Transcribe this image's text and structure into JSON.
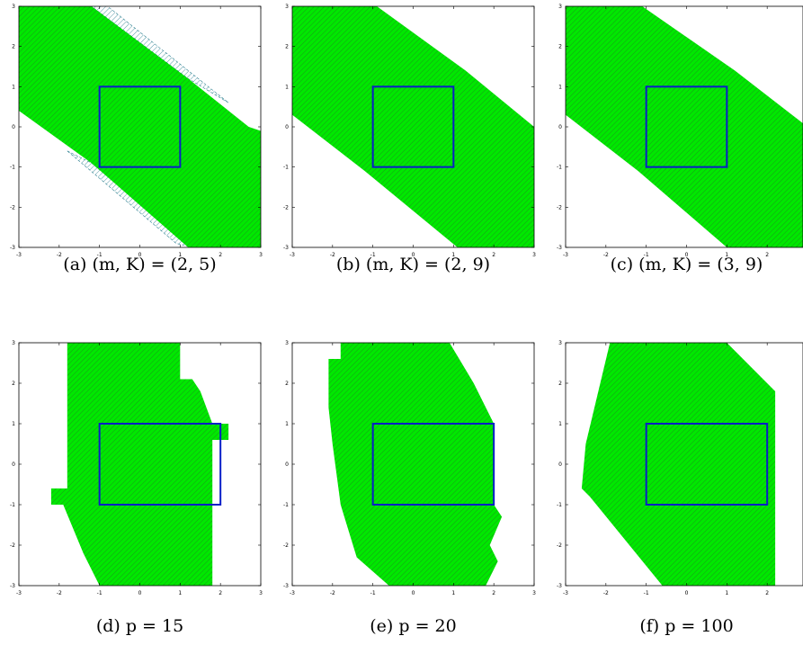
{
  "colors": {
    "region": "#00e800",
    "hatch": "#1a9a1a",
    "outline": "#0a1ec8",
    "extra_hatch": "#2a7f8f",
    "axes": "#000000"
  },
  "chart_data": [
    {
      "type": "area",
      "caption": "(a) (m, K) = (2, 5)",
      "xlim": [
        -3,
        3
      ],
      "ylim": [
        -3,
        3
      ],
      "xticks": [
        "-3",
        "-2",
        "-1",
        "0",
        "1",
        "2",
        "3"
      ],
      "yticks": [
        "-3",
        "-2",
        "-1",
        "0",
        "1",
        "2",
        "3"
      ],
      "box": [
        [
          -1,
          -1
        ],
        [
          1,
          1
        ]
      ],
      "region": [
        [
          -3,
          3
        ],
        [
          -1.2,
          3
        ],
        [
          1.2,
          1.2
        ],
        [
          2.7,
          0
        ],
        [
          3,
          -0.1
        ],
        [
          3,
          -3
        ],
        [
          1.2,
          -3
        ],
        [
          -1.2,
          -0.9
        ],
        [
          -3,
          0.4
        ]
      ],
      "extra_region": [
        [
          -1.2,
          3
        ],
        [
          -0.8,
          3
        ],
        [
          2.2,
          0.6
        ],
        [
          1.2,
          1.2
        ]
      ],
      "extra_region2": [
        [
          -1.8,
          -0.6
        ],
        [
          -1.2,
          -0.9
        ],
        [
          1.3,
          -3
        ],
        [
          0.9,
          -2.9
        ]
      ]
    },
    {
      "type": "area",
      "caption": "(b) (m, K) = (2, 9)",
      "xlim": [
        -3,
        3
      ],
      "ylim": [
        -3,
        3
      ],
      "xticks": [
        "-3",
        "-2",
        "-1",
        "0",
        "1",
        "2",
        "3"
      ],
      "yticks": [
        "-3",
        "-2",
        "-1",
        "0",
        "1",
        "2",
        "3"
      ],
      "box": [
        [
          -1,
          -1
        ],
        [
          1,
          1
        ]
      ],
      "region": [
        [
          -3,
          3
        ],
        [
          -0.9,
          3
        ],
        [
          1.3,
          1.4
        ],
        [
          3,
          0
        ],
        [
          3,
          -3
        ],
        [
          1.1,
          -3
        ],
        [
          -1.2,
          -1.1
        ],
        [
          -3,
          0.3
        ]
      ]
    },
    {
      "type": "area",
      "caption": "(c) (m, K) = (3, 9)",
      "xlim": [
        -3,
        3
      ],
      "ylim": [
        -3,
        3
      ],
      "xticks": [
        "-3",
        "-2",
        "-1",
        "0",
        "1",
        "2",
        "3"
      ],
      "yticks": [
        "-3",
        "-2",
        "-1",
        "0",
        "1",
        "2",
        "3"
      ],
      "box": [
        [
          -1,
          -1
        ],
        [
          1,
          1
        ]
      ],
      "region": [
        [
          -3,
          3
        ],
        [
          -1.1,
          3
        ],
        [
          1.2,
          1.4
        ],
        [
          3,
          0
        ],
        [
          3,
          -3
        ],
        [
          1.0,
          -3
        ],
        [
          -1.2,
          -1.1
        ],
        [
          -3,
          0.3
        ]
      ]
    },
    {
      "type": "area",
      "caption": "(d) p = 15",
      "xlim": [
        -3,
        3
      ],
      "ylim": [
        -3,
        3
      ],
      "xticks": [
        "-3",
        "-2",
        "-1",
        "0",
        "1",
        "2",
        "3"
      ],
      "yticks": [
        "-3",
        "-2",
        "-1",
        "0",
        "1",
        "2",
        "3"
      ],
      "box": [
        [
          -1,
          -1
        ],
        [
          2,
          1
        ]
      ],
      "region": [
        [
          -1.8,
          3
        ],
        [
          1.0,
          3
        ],
        [
          1.0,
          2.1
        ],
        [
          1.3,
          2.1
        ],
        [
          1.5,
          1.8
        ],
        [
          1.8,
          1.0
        ],
        [
          2.2,
          1.0
        ],
        [
          2.2,
          0.6
        ],
        [
          1.8,
          0.6
        ],
        [
          1.8,
          -3
        ],
        [
          -1.0,
          -3
        ],
        [
          -1.4,
          -2.2
        ],
        [
          -1.9,
          -1.0
        ],
        [
          -2.2,
          -1.0
        ],
        [
          -2.2,
          -0.6
        ],
        [
          -1.8,
          -0.6
        ]
      ]
    },
    {
      "type": "area",
      "caption": "(e) p = 20",
      "xlim": [
        -3,
        3
      ],
      "ylim": [
        -3,
        3
      ],
      "xticks": [
        "-3",
        "-2",
        "-1",
        "0",
        "1",
        "2",
        "3"
      ],
      "yticks": [
        "-3",
        "-2",
        "-1",
        "0",
        "1",
        "2",
        "3"
      ],
      "box": [
        [
          -1,
          -1
        ],
        [
          2,
          1
        ]
      ],
      "region": [
        [
          -1.8,
          3
        ],
        [
          0.9,
          3
        ],
        [
          1.5,
          2.0
        ],
        [
          2.0,
          1.0
        ],
        [
          2.0,
          -1.0
        ],
        [
          2.2,
          -1.3
        ],
        [
          1.9,
          -2.0
        ],
        [
          2.1,
          -2.4
        ],
        [
          1.8,
          -3
        ],
        [
          -0.6,
          -3
        ],
        [
          -1.4,
          -2.3
        ],
        [
          -1.8,
          -1.0
        ],
        [
          -2.0,
          0.5
        ],
        [
          -2.1,
          1.4
        ],
        [
          -2.1,
          2.6
        ],
        [
          -1.8,
          2.6
        ]
      ]
    },
    {
      "type": "area",
      "caption": "(f) p = 100",
      "xlim": [
        -3,
        3
      ],
      "ylim": [
        -3,
        3
      ],
      "xticks": [
        "-3",
        "-2",
        "-1",
        "0",
        "1",
        "2",
        "3"
      ],
      "yticks": [
        "-3",
        "-2",
        "-1",
        "0",
        "1",
        "2",
        "3"
      ],
      "box": [
        [
          -1,
          -1
        ],
        [
          2,
          1
        ]
      ],
      "region": [
        [
          -1.9,
          3
        ],
        [
          1.0,
          3
        ],
        [
          2.2,
          1.8
        ],
        [
          2.2,
          -3
        ],
        [
          -0.6,
          -3
        ],
        [
          -2.4,
          -0.8
        ],
        [
          -2.6,
          -0.6
        ],
        [
          -2.5,
          0.5
        ]
      ]
    }
  ]
}
